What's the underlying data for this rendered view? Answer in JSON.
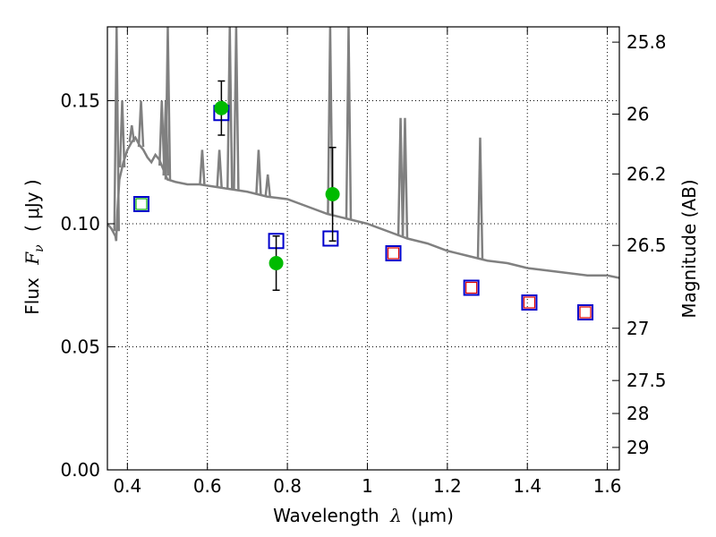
{
  "chart_data": {
    "type": "scatter",
    "xlabel_prefix": "Wavelength",
    "xlabel_symbol": "λ",
    "xlabel_unit": "(μm)",
    "ylabel_prefix": "Flux",
    "ylabel_symbol": "F",
    "ylabel_subscript": "ν",
    "ylabel_unit": "( μJy )",
    "y2label": "Magnitude (AB)",
    "xlim": [
      0.35,
      1.63
    ],
    "ylim": [
      0.0,
      0.18
    ],
    "grid": true,
    "xticks": [
      0.4,
      0.6,
      0.8,
      1.0,
      1.2,
      1.4,
      1.6
    ],
    "xtick_labels": [
      "0.4",
      "0.6",
      "0.8",
      "1",
      "1.2",
      "1.4",
      "1.6"
    ],
    "yticks": [
      0.0,
      0.05,
      0.1,
      0.15
    ],
    "ytick_labels": [
      "0.00",
      "0.05",
      "0.10",
      "0.15"
    ],
    "y2ticks": [
      {
        "label": "25.8",
        "mag": 25.8
      },
      {
        "label": "26",
        "mag": 26.0
      },
      {
        "label": "26.2",
        "mag": 26.2
      },
      {
        "label": "26.5",
        "mag": 26.5
      },
      {
        "label": "27",
        "mag": 27.0
      },
      {
        "label": "27.5",
        "mag": 27.5
      },
      {
        "label": "28",
        "mag": 28.0
      },
      {
        "label": "29",
        "mag": 29.0
      }
    ],
    "series": [
      {
        "kind": "line",
        "color": "#808080",
        "x": [
          0.35,
          0.36,
          0.37,
          0.372,
          0.375,
          0.38,
          0.39,
          0.4,
          0.41,
          0.42,
          0.43,
          0.44,
          0.45,
          0.46,
          0.47,
          0.48,
          0.5,
          0.52,
          0.55,
          0.58,
          0.62,
          0.66,
          0.7,
          0.75,
          0.8,
          0.85,
          0.9,
          0.95,
          1.0,
          1.05,
          1.1,
          1.15,
          1.2,
          1.25,
          1.3,
          1.35,
          1.4,
          1.45,
          1.5,
          1.55,
          1.6,
          1.63
        ],
        "y": [
          0.1,
          0.098,
          0.095,
          0.093,
          0.105,
          0.118,
          0.125,
          0.13,
          0.133,
          0.135,
          0.132,
          0.13,
          0.127,
          0.125,
          0.128,
          0.126,
          0.118,
          0.117,
          0.116,
          0.116,
          0.115,
          0.114,
          0.113,
          0.111,
          0.11,
          0.107,
          0.104,
          0.102,
          0.1,
          0.097,
          0.094,
          0.092,
          0.089,
          0.087,
          0.085,
          0.084,
          0.082,
          0.081,
          0.08,
          0.079,
          0.079,
          0.078
        ]
      },
      {
        "kind": "emission_lines",
        "color": "#808080",
        "lines": [
          {
            "x": 0.373,
            "peak": 0.18
          },
          {
            "x": 0.387,
            "peak": 0.15
          },
          {
            "x": 0.411,
            "peak": 0.14
          },
          {
            "x": 0.434,
            "peak": 0.15
          },
          {
            "x": 0.486,
            "peak": 0.15
          },
          {
            "x": 0.496,
            "peak": 0.15
          },
          {
            "x": 0.501,
            "peak": 0.18
          },
          {
            "x": 0.587,
            "peak": 0.13
          },
          {
            "x": 0.63,
            "peak": 0.13
          },
          {
            "x": 0.656,
            "peak": 0.18
          },
          {
            "x": 0.672,
            "peak": 0.18
          },
          {
            "x": 0.728,
            "peak": 0.13
          },
          {
            "x": 0.751,
            "peak": 0.12
          },
          {
            "x": 0.907,
            "peak": 0.18
          },
          {
            "x": 0.953,
            "peak": 0.18
          },
          {
            "x": 1.083,
            "peak": 0.143
          },
          {
            "x": 1.094,
            "peak": 0.143
          },
          {
            "x": 1.282,
            "peak": 0.135
          }
        ]
      },
      {
        "kind": "squares_blue_green",
        "x": [
          0.435
        ],
        "y": [
          0.108
        ]
      },
      {
        "kind": "squares_blue_red",
        "x": [
          1.065,
          1.26,
          1.405,
          1.545
        ],
        "y": [
          0.088,
          0.074,
          0.068,
          0.064
        ]
      },
      {
        "kind": "squares_blue_white",
        "x": [
          0.635,
          0.772,
          0.908
        ],
        "y": [
          0.145,
          0.093,
          0.094
        ]
      },
      {
        "kind": "points_errorbars",
        "color": "#00bb00",
        "x": [
          0.635,
          0.772,
          0.913
        ],
        "y": [
          0.147,
          0.084,
          0.112
        ],
        "yerr_low": [
          0.136,
          0.073,
          0.093
        ],
        "yerr_high": [
          0.158,
          0.095,
          0.131
        ]
      }
    ]
  }
}
